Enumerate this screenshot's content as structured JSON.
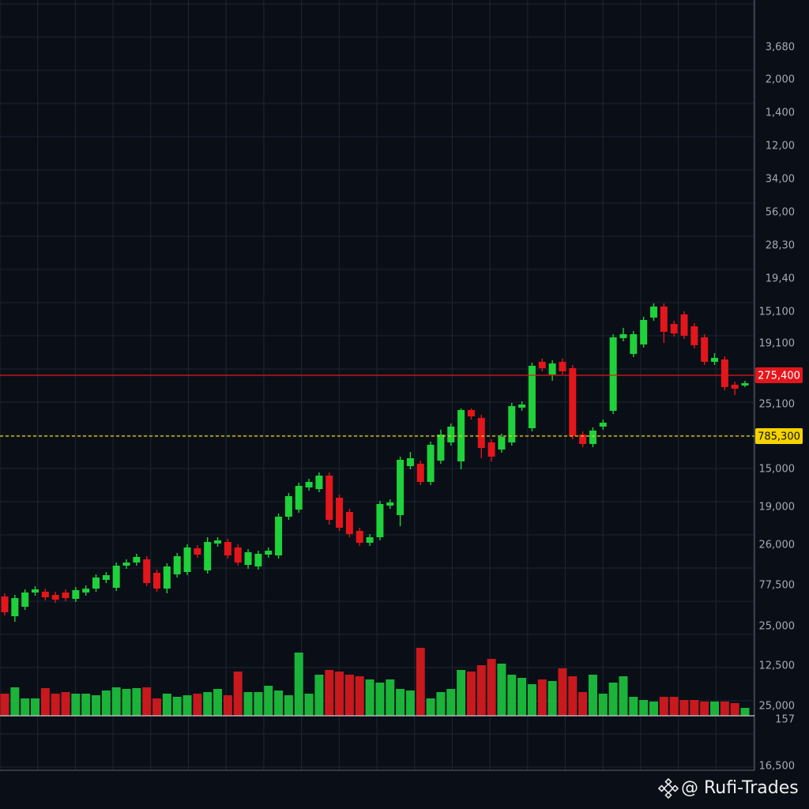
{
  "chart_data": {
    "type": "candlestick",
    "ylim": [
      0,
      1000
    ],
    "vlim": [
      0,
      100
    ],
    "grid": true,
    "up_color": "#1fd13a",
    "down_color": "#e3161b",
    "open": [
      245,
      220,
      232,
      250,
      251,
      247,
      250,
      242,
      250,
      255,
      266,
      256,
      284,
      288,
      292,
      275,
      255,
      273,
      276,
      306,
      278,
      312,
      314,
      307,
      285,
      283,
      298,
      297,
      346,
      355,
      383,
      381,
      398,
      370,
      352,
      328,
      313,
      320,
      360,
      348,
      410,
      413,
      390,
      417,
      440,
      416,
      481,
      471,
      440,
      431,
      440,
      484,
      458,
      542,
      526,
      542,
      534,
      450,
      438,
      460,
      480,
      572,
      552,
      564,
      598,
      612,
      590,
      602,
      587,
      573,
      542,
      545,
      513,
      512
    ],
    "high": [
      249,
      247,
      254,
      258,
      255,
      251,
      254,
      257,
      259,
      273,
      276,
      288,
      292,
      299,
      296,
      279,
      287,
      300,
      311,
      310,
      320,
      320,
      318,
      311,
      305,
      303,
      307,
      350,
      376,
      389,
      394,
      402,
      402,
      374,
      356,
      332,
      324,
      366,
      368,
      422,
      428,
      417,
      441,
      456,
      464,
      483,
      483,
      475,
      444,
      451,
      490,
      492,
      541,
      546,
      544,
      546,
      538,
      454,
      459,
      469,
      577,
      585,
      581,
      599,
      616,
      616,
      594,
      606,
      591,
      577,
      553,
      549,
      517,
      518
    ],
    "low": [
      221,
      213,
      228,
      246,
      240,
      237,
      239,
      238,
      246,
      251,
      262,
      252,
      280,
      284,
      258,
      251,
      249,
      269,
      272,
      294,
      274,
      308,
      293,
      284,
      280,
      279,
      294,
      293,
      342,
      351,
      379,
      377,
      336,
      328,
      320,
      309,
      309,
      316,
      356,
      334,
      406,
      386,
      386,
      413,
      436,
      406,
      469,
      420,
      416,
      427,
      436,
      480,
      454,
      530,
      518,
      526,
      444,
      434,
      434,
      456,
      476,
      568,
      548,
      560,
      594,
      566,
      574,
      571,
      559,
      538,
      538,
      506,
      500,
      510
    ],
    "close": [
      225,
      243,
      250,
      254,
      244,
      241,
      243,
      253,
      255,
      269,
      272,
      284,
      288,
      295,
      262,
      255,
      283,
      296,
      307,
      298,
      314,
      316,
      297,
      288,
      301,
      299,
      303,
      346,
      372,
      385,
      390,
      398,
      342,
      332,
      324,
      313,
      320,
      362,
      364,
      418,
      420,
      390,
      437,
      450,
      460,
      481,
      473,
      433,
      422,
      447,
      486,
      488,
      537,
      534,
      540,
      530,
      448,
      438,
      455,
      465,
      573,
      577,
      577,
      595,
      612,
      580,
      578,
      575,
      563,
      542,
      547,
      510,
      508,
      515
    ],
    "volume": [
      28,
      36,
      22,
      22,
      35,
      28,
      30,
      28,
      28,
      26,
      32,
      36,
      34,
      35,
      36,
      22,
      28,
      24,
      26,
      28,
      30,
      34,
      26,
      56,
      30,
      30,
      38,
      32,
      26,
      80,
      28,
      52,
      58,
      56,
      52,
      50,
      46,
      42,
      46,
      34,
      32,
      86,
      22,
      30,
      34,
      58,
      56,
      64,
      72,
      66,
      52,
      48,
      40,
      46,
      44,
      60,
      50,
      30,
      52,
      28,
      42,
      50,
      24,
      20,
      18,
      24,
      24,
      20,
      20,
      18,
      18,
      18,
      16,
      10
    ],
    "axis_labels": [
      "3,680",
      "2,000",
      "1,400",
      "12,00",
      "34,00",
      "56,00",
      "28,30",
      "19,40",
      "15,100",
      "19,100",
      "25,100",
      "15,000",
      "19,000",
      "26,000",
      "77,500",
      "25,000",
      "12,500",
      "25,000",
      "157",
      "16,500"
    ],
    "price_lines": [
      {
        "label": "275,400",
        "color": "#e3161b"
      },
      {
        "label": "785,300",
        "color": "#f5d300"
      }
    ],
    "watermark": "@ Rufi-Trades"
  }
}
